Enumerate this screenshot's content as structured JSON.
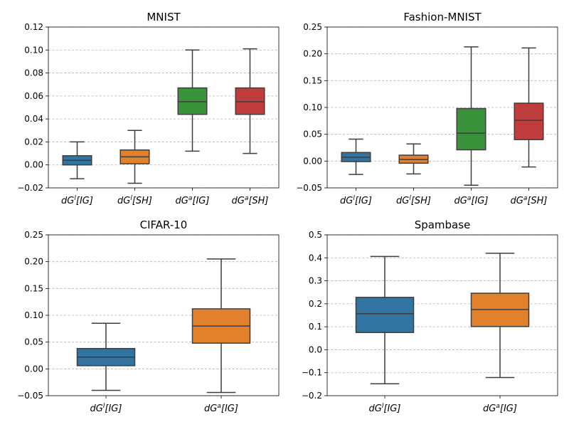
{
  "chart_data": [
    {
      "type": "box",
      "title": "MNIST",
      "ylim": [
        -0.02,
        0.12
      ],
      "yticks": [
        -0.02,
        0.0,
        0.02,
        0.04,
        0.06,
        0.08,
        0.1,
        0.12
      ],
      "ytick_labels": [
        "−0.02",
        "0.00",
        "0.02",
        "0.04",
        "0.06",
        "0.08",
        "0.10",
        "0.12"
      ],
      "grid": "y-dashed",
      "boxes": [
        {
          "label": [
            "dG",
            "l",
            "[IG]"
          ],
          "color": "#3274a1",
          "whisker_low": -0.012,
          "q1": 0.0,
          "median": 0.004,
          "q3": 0.008,
          "whisker_high": 0.02
        },
        {
          "label": [
            "dG",
            "l",
            "[SH]"
          ],
          "color": "#e1812c",
          "whisker_low": -0.016,
          "q1": 0.001,
          "median": 0.007,
          "q3": 0.013,
          "whisker_high": 0.03
        },
        {
          "label": [
            "dG",
            "a",
            "[IG]"
          ],
          "color": "#3a923a",
          "whisker_low": 0.012,
          "q1": 0.044,
          "median": 0.055,
          "q3": 0.067,
          "whisker_high": 0.1
        },
        {
          "label": [
            "dG",
            "a",
            "[SH]"
          ],
          "color": "#c03d3e",
          "whisker_low": 0.01,
          "q1": 0.044,
          "median": 0.055,
          "q3": 0.067,
          "whisker_high": 0.101
        }
      ]
    },
    {
      "type": "box",
      "title": "Fashion-MNIST",
      "ylim": [
        -0.05,
        0.25
      ],
      "yticks": [
        -0.05,
        0.0,
        0.05,
        0.1,
        0.15,
        0.2,
        0.25
      ],
      "ytick_labels": [
        "−0.05",
        "0.00",
        "0.05",
        "0.10",
        "0.15",
        "0.20",
        "0.25"
      ],
      "grid": "y-dashed",
      "boxes": [
        {
          "label": [
            "dG",
            "l",
            "[IG]"
          ],
          "color": "#3274a1",
          "whisker_low": -0.025,
          "q1": -0.001,
          "median": 0.007,
          "q3": 0.016,
          "whisker_high": 0.041
        },
        {
          "label": [
            "dG",
            "l",
            "[SH]"
          ],
          "color": "#e1812c",
          "whisker_low": -0.024,
          "q1": -0.004,
          "median": 0.003,
          "q3": 0.011,
          "whisker_high": 0.032
        },
        {
          "label": [
            "dG",
            "a",
            "[IG]"
          ],
          "color": "#3a923a",
          "whisker_low": -0.045,
          "q1": 0.021,
          "median": 0.052,
          "q3": 0.098,
          "whisker_high": 0.213
        },
        {
          "label": [
            "dG",
            "a",
            "[SH]"
          ],
          "color": "#c03d3e",
          "whisker_low": -0.011,
          "q1": 0.04,
          "median": 0.076,
          "q3": 0.108,
          "whisker_high": 0.211
        }
      ]
    },
    {
      "type": "box",
      "title": "CIFAR-10",
      "ylim": [
        -0.05,
        0.25
      ],
      "yticks": [
        -0.05,
        0.0,
        0.05,
        0.1,
        0.15,
        0.2,
        0.25
      ],
      "ytick_labels": [
        "−0.05",
        "0.00",
        "0.05",
        "0.10",
        "0.15",
        "0.20",
        "0.25"
      ],
      "grid": "y-dashed",
      "boxes": [
        {
          "label": [
            "dG",
            "l",
            "[IG]"
          ],
          "color": "#3274a1",
          "whisker_low": -0.04,
          "q1": 0.006,
          "median": 0.022,
          "q3": 0.038,
          "whisker_high": 0.085
        },
        {
          "label": [
            "dG",
            "a",
            "[IG]"
          ],
          "color": "#e1812c",
          "whisker_low": -0.044,
          "q1": 0.048,
          "median": 0.08,
          "q3": 0.112,
          "whisker_high": 0.205
        }
      ]
    },
    {
      "type": "box",
      "title": "Spambase",
      "ylim": [
        -0.2,
        0.5
      ],
      "yticks": [
        -0.2,
        -0.1,
        0.0,
        0.1,
        0.2,
        0.3,
        0.4,
        0.5
      ],
      "ytick_labels": [
        "−0.2",
        "−0.1",
        "0.0",
        "0.1",
        "0.2",
        "0.3",
        "0.4",
        "0.5"
      ],
      "grid": "y-dashed",
      "boxes": [
        {
          "label": [
            "dG",
            "l",
            "[IG]"
          ],
          "color": "#3274a1",
          "whisker_low": -0.148,
          "q1": 0.075,
          "median": 0.157,
          "q3": 0.228,
          "whisker_high": 0.406
        },
        {
          "label": [
            "dG",
            "a",
            "[IG]"
          ],
          "color": "#e1812c",
          "whisker_low": -0.121,
          "q1": 0.101,
          "median": 0.175,
          "q3": 0.246,
          "whisker_high": 0.42
        }
      ]
    }
  ]
}
